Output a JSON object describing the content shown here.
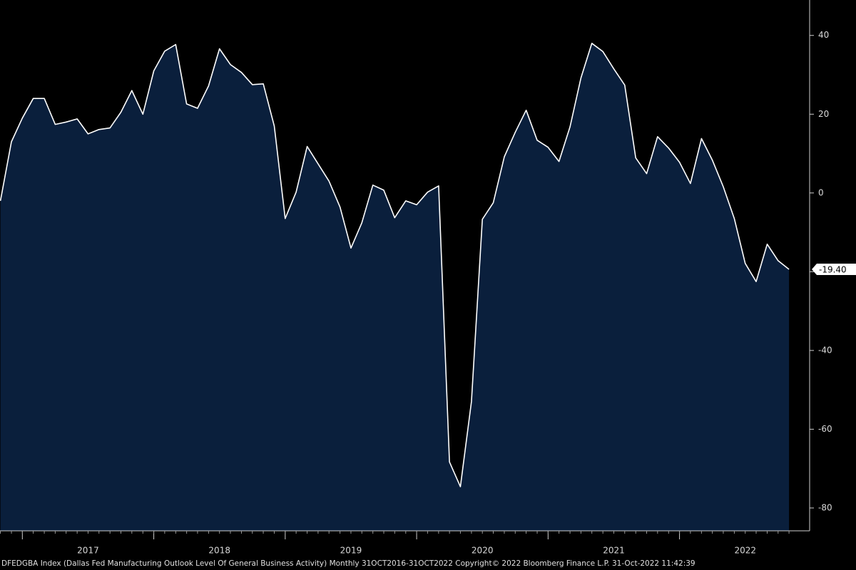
{
  "chart_data": {
    "type": "area",
    "x": [
      2016.833,
      2016.917,
      2017,
      2017.083,
      2017.167,
      2017.25,
      2017.333,
      2017.417,
      2017.5,
      2017.583,
      2017.667,
      2017.75,
      2017.833,
      2017.917,
      2018,
      2018.083,
      2018.167,
      2018.25,
      2018.333,
      2018.417,
      2018.5,
      2018.583,
      2018.667,
      2018.75,
      2018.833,
      2018.917,
      2019,
      2019.083,
      2019.167,
      2019.25,
      2019.333,
      2019.417,
      2019.5,
      2019.583,
      2019.667,
      2019.75,
      2019.833,
      2019.917,
      2020,
      2020.083,
      2020.167,
      2020.25,
      2020.333,
      2020.417,
      2020.5,
      2020.583,
      2020.667,
      2020.75,
      2020.833,
      2020.917,
      2021,
      2021.083,
      2021.167,
      2021.25,
      2021.333,
      2021.417,
      2021.5,
      2021.583,
      2021.667,
      2021.75,
      2021.833,
      2021.917,
      2022,
      2022.083,
      2022.167,
      2022.25,
      2022.333,
      2022.417,
      2022.5,
      2022.583,
      2022.667,
      2022.75,
      2022.833
    ],
    "values": [
      -2,
      13,
      19,
      24,
      24,
      17.4,
      18,
      18.8,
      15,
      16.1,
      16.5,
      20.5,
      26,
      20,
      31,
      36,
      37.7,
      22.6,
      21.5,
      27.2,
      36.6,
      32.6,
      30.6,
      27.5,
      27.7,
      17,
      -6.5,
      0.2,
      11.8,
      7.4,
      3,
      -3.6,
      -14,
      -7.6,
      2,
      0.7,
      -6.3,
      -2,
      -3,
      0.2,
      1.8,
      -68.3,
      -74.6,
      -53,
      -6.7,
      -2.5,
      9.2,
      15.4,
      21,
      13.4,
      11.6,
      8,
      16.8,
      29.2,
      38,
      35.9,
      31.5,
      27.4,
      8.9,
      4.9,
      14.3,
      11.4,
      7.8,
      2.4,
      13.8,
      8.3,
      1.6,
      -6.5,
      -17.9,
      -22.5,
      -13,
      -17.2,
      -19.4
    ],
    "value_labels": [
      null,
      null,
      null,
      null,
      null,
      null,
      null,
      null,
      null,
      null,
      null,
      null,
      null,
      null,
      null,
      null,
      null,
      null,
      null,
      null,
      null,
      null,
      null,
      null,
      null,
      null,
      null,
      null,
      null,
      null,
      null,
      null,
      null,
      null,
      null,
      null,
      null,
      null,
      null,
      null,
      null,
      null,
      null,
      null,
      null,
      null,
      null,
      null,
      null,
      null,
      null,
      null,
      null,
      null,
      null,
      null,
      null,
      null,
      null,
      null,
      null,
      null,
      null,
      null,
      null,
      null,
      null,
      null,
      null,
      null,
      null,
      null,
      "-19.40"
    ],
    "color": "#0a1f3c",
    "line_color": "#ffffff",
    "xlim": [
      2016.83,
      2022.99
    ],
    "xticks": [
      {
        "value": 2017.5,
        "label": "2017"
      },
      {
        "value": 2018.5,
        "label": "2018"
      },
      {
        "value": 2019.5,
        "label": "2019"
      },
      {
        "value": 2020.5,
        "label": "2020"
      },
      {
        "value": 2021.5,
        "label": "2021"
      },
      {
        "value": 2022.5,
        "label": "2022"
      }
    ],
    "ylim": [
      -85.8,
      49
    ],
    "yticks": [
      40,
      20,
      0,
      -20,
      -40,
      -60,
      -80
    ],
    "footer": "DFEDGBA Index (Dallas Fed Manufacturing Outlook Level Of General Business Activity)  Monthly 31OCT2016-31OCT2022 Copyright© 2022 Bloomberg Finance L.P.  31-Oct-2022 11:42:39"
  }
}
